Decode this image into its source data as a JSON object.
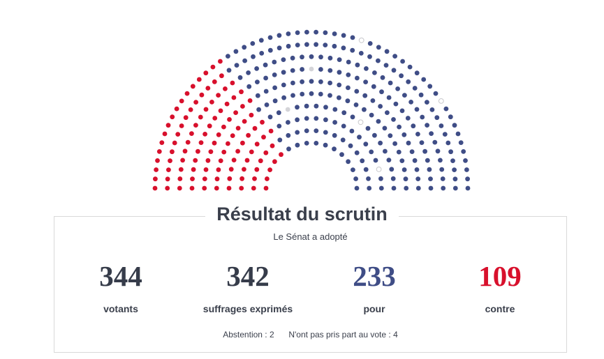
{
  "title": "Résultat du scrutin",
  "subtitle": "Le Sénat a adopté",
  "stats": {
    "votants": {
      "value": "344",
      "label": "votants"
    },
    "exprimes": {
      "value": "342",
      "label": "suffrages exprimés"
    },
    "pour": {
      "value": "233",
      "label": "pour"
    },
    "contre": {
      "value": "109",
      "label": "contre"
    }
  },
  "footer": {
    "abstention_label": "Abstention :",
    "abstention_value": "2",
    "npp_label": "N'ont pas pris part au vote :",
    "npp_value": "4"
  },
  "colors": {
    "pour": "#3f4d86",
    "contre": "#d8102c",
    "abstention": "#d4d4d8",
    "npp": "#ffffff",
    "npp_stroke": "#c8c8cc",
    "text": "#3a3f4b"
  },
  "hemicycle": {
    "total_seats": 348,
    "pour": 233,
    "contre": 109,
    "abstention": 2,
    "npp": 4
  }
}
